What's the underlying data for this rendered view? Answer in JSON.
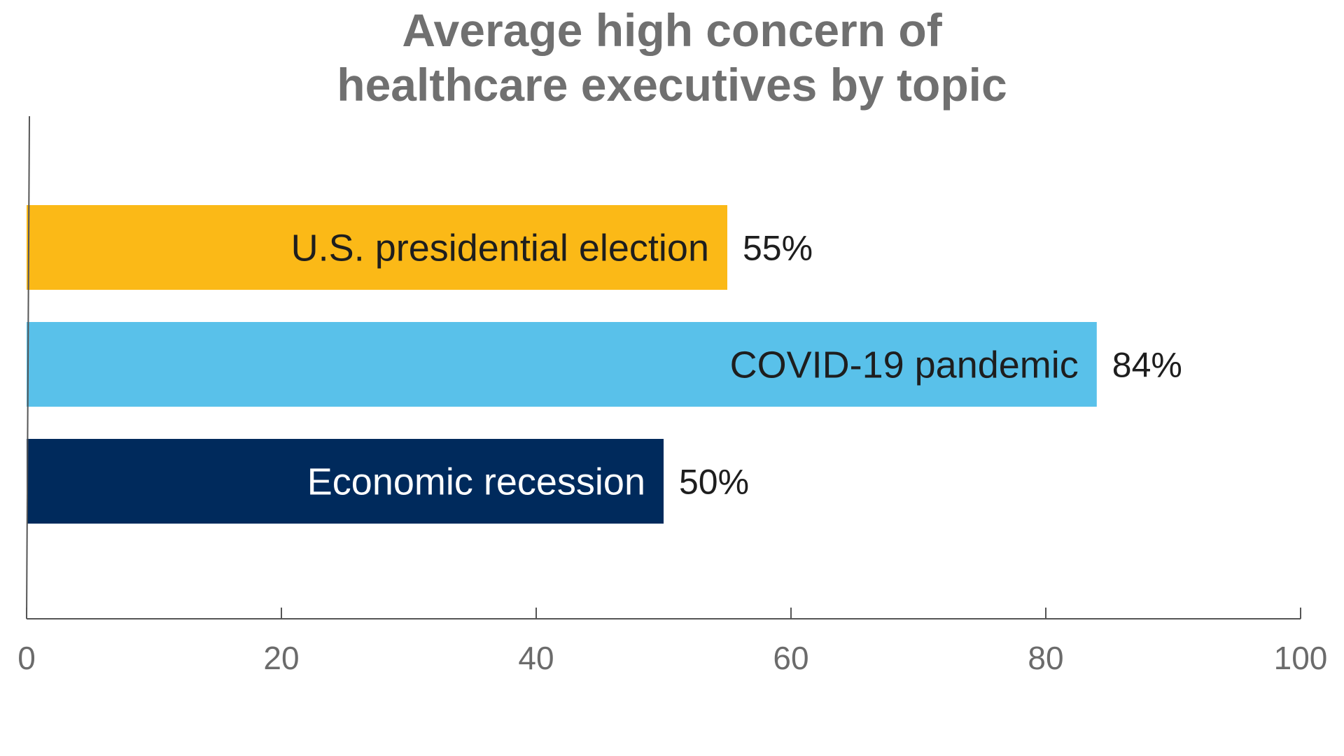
{
  "chart_data": {
    "type": "bar",
    "orientation": "horizontal",
    "title": "Average high concern of healthcare executives by topic",
    "title_lines": [
      "Average high concern of",
      "healthcare executives by topic"
    ],
    "categories": [
      "U.S. presidential election",
      "COVID-19 pandemic",
      "Economic recession"
    ],
    "values": [
      55,
      84,
      50
    ],
    "value_labels": [
      "55%",
      "84%",
      "50%"
    ],
    "colors": [
      "#FBB917",
      "#59C1EA",
      "#002A5C"
    ],
    "label_colors": [
      "#1e1e1e",
      "#1e1e1e",
      "#ffffff"
    ],
    "xlim": [
      0,
      100
    ],
    "xticks": [
      0,
      20,
      40,
      60,
      80,
      100
    ],
    "xtick_labels": [
      "0",
      "20",
      "40",
      "60",
      "80",
      "100"
    ],
    "xlabel": "",
    "ylabel": "",
    "grid": false,
    "legend": "none"
  }
}
